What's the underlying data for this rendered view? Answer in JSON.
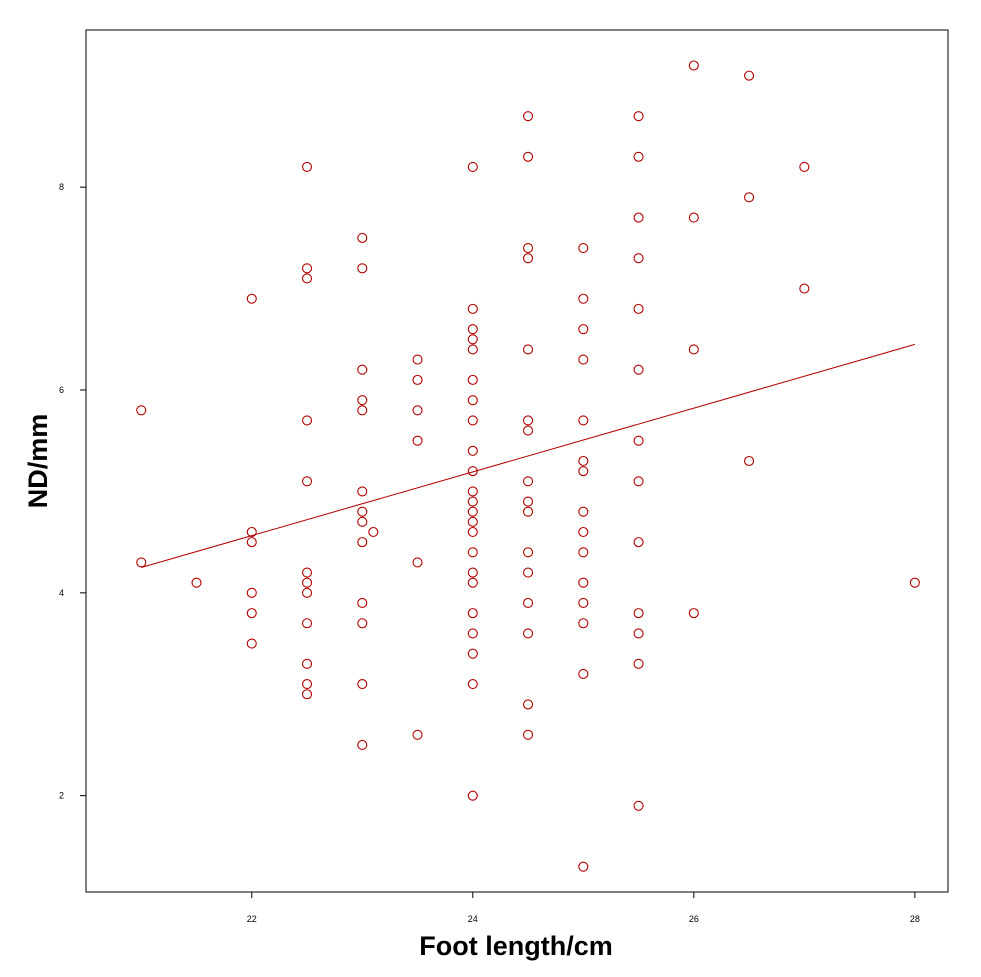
{
  "chart_data": {
    "type": "scatter",
    "xlabel": "Foot length/cm",
    "ylabel": "ND/mm",
    "xlim": [
      20.5,
      28.3
    ],
    "ylim": [
      1.05,
      9.55
    ],
    "xticks": [
      22,
      24,
      26,
      28
    ],
    "yticks": [
      2,
      4,
      6,
      8
    ],
    "grid": false,
    "marker_color": "#b30000",
    "fit_line": {
      "x": [
        21,
        28
      ],
      "y": [
        4.25,
        6.45
      ],
      "color": "#b30000"
    },
    "points": [
      [
        21,
        5.8
      ],
      [
        21,
        4.3
      ],
      [
        21.5,
        4.1
      ],
      [
        22,
        6.9
      ],
      [
        22,
        4.6
      ],
      [
        22,
        4.5
      ],
      [
        22,
        4.0
      ],
      [
        22,
        3.8
      ],
      [
        22,
        3.5
      ],
      [
        22.5,
        8.2
      ],
      [
        22.5,
        7.2
      ],
      [
        22.5,
        7.1
      ],
      [
        22.5,
        5.7
      ],
      [
        22.5,
        5.1
      ],
      [
        22.5,
        4.2
      ],
      [
        22.5,
        4.1
      ],
      [
        22.5,
        4.0
      ],
      [
        22.5,
        3.7
      ],
      [
        22.5,
        3.3
      ],
      [
        22.5,
        3.1
      ],
      [
        22.5,
        3.0
      ],
      [
        23,
        7.5
      ],
      [
        23,
        7.2
      ],
      [
        23,
        6.2
      ],
      [
        23,
        5.9
      ],
      [
        23,
        5.8
      ],
      [
        23,
        5.0
      ],
      [
        23,
        4.8
      ],
      [
        23,
        4.7
      ],
      [
        23,
        4.5
      ],
      [
        23,
        3.9
      ],
      [
        23,
        3.7
      ],
      [
        23,
        3.1
      ],
      [
        23,
        2.5
      ],
      [
        23.1,
        4.6
      ],
      [
        23.5,
        6.3
      ],
      [
        23.5,
        6.1
      ],
      [
        23.5,
        5.8
      ],
      [
        23.5,
        5.5
      ],
      [
        23.5,
        4.3
      ],
      [
        23.5,
        2.6
      ],
      [
        24,
        8.2
      ],
      [
        24,
        6.8
      ],
      [
        24,
        6.6
      ],
      [
        24,
        6.5
      ],
      [
        24,
        6.4
      ],
      [
        24,
        6.1
      ],
      [
        24,
        5.9
      ],
      [
        24,
        5.7
      ],
      [
        24,
        5.4
      ],
      [
        24,
        5.2
      ],
      [
        24,
        5.0
      ],
      [
        24,
        4.9
      ],
      [
        24,
        4.8
      ],
      [
        24,
        4.7
      ],
      [
        24,
        4.6
      ],
      [
        24,
        4.4
      ],
      [
        24,
        4.2
      ],
      [
        24,
        4.1
      ],
      [
        24,
        3.8
      ],
      [
        24,
        3.6
      ],
      [
        24,
        3.4
      ],
      [
        24,
        3.1
      ],
      [
        24,
        2.0
      ],
      [
        24.5,
        8.7
      ],
      [
        24.5,
        8.3
      ],
      [
        24.5,
        7.4
      ],
      [
        24.5,
        7.3
      ],
      [
        24.5,
        6.4
      ],
      [
        24.5,
        5.7
      ],
      [
        24.5,
        5.6
      ],
      [
        24.5,
        5.1
      ],
      [
        24.5,
        4.9
      ],
      [
        24.5,
        4.8
      ],
      [
        24.5,
        4.4
      ],
      [
        24.5,
        4.2
      ],
      [
        24.5,
        3.9
      ],
      [
        24.5,
        3.6
      ],
      [
        24.5,
        2.9
      ],
      [
        24.5,
        2.6
      ],
      [
        25,
        7.4
      ],
      [
        25,
        6.9
      ],
      [
        25,
        6.6
      ],
      [
        25,
        6.3
      ],
      [
        25,
        5.7
      ],
      [
        25,
        5.3
      ],
      [
        25,
        5.2
      ],
      [
        25,
        4.8
      ],
      [
        25,
        4.6
      ],
      [
        25,
        4.4
      ],
      [
        25,
        4.1
      ],
      [
        25,
        3.9
      ],
      [
        25,
        3.7
      ],
      [
        25,
        3.2
      ],
      [
        25,
        1.3
      ],
      [
        25.5,
        8.7
      ],
      [
        25.5,
        8.3
      ],
      [
        25.5,
        7.7
      ],
      [
        25.5,
        7.3
      ],
      [
        25.5,
        6.8
      ],
      [
        25.5,
        6.2
      ],
      [
        25.5,
        5.5
      ],
      [
        25.5,
        5.1
      ],
      [
        25.5,
        4.5
      ],
      [
        25.5,
        3.8
      ],
      [
        25.5,
        3.6
      ],
      [
        25.5,
        3.3
      ],
      [
        25.5,
        1.9
      ],
      [
        26,
        9.2
      ],
      [
        26,
        7.7
      ],
      [
        26,
        6.4
      ],
      [
        26,
        3.8
      ],
      [
        26.5,
        9.1
      ],
      [
        26.5,
        7.9
      ],
      [
        26.5,
        5.3
      ],
      [
        27,
        8.2
      ],
      [
        27,
        7.0
      ],
      [
        28,
        4.1
      ]
    ]
  }
}
